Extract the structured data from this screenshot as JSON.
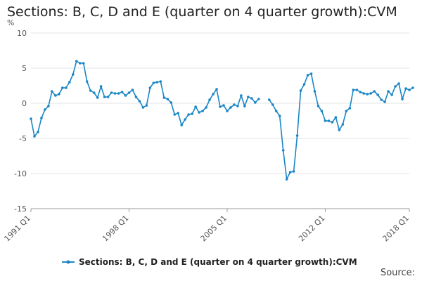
{
  "chart_data": {
    "type": "line",
    "title": "Sections: B, C, D and E (quarter on 4 quarter growth):CVM",
    "ylabel": "%",
    "xlabel": "",
    "ylim": [
      -15,
      10
    ],
    "yticks": [
      10,
      5,
      0,
      -5,
      -10,
      -15
    ],
    "xtick_labels": [
      "1991 Q1",
      "1998 Q1",
      "2005 Q1",
      "2012 Q1",
      "2018 Q1"
    ],
    "grid": true,
    "legend_position": "bottom",
    "color": "#1a86c6",
    "series": [
      {
        "name": "Sections: B, C, D and E (quarter on 4 quarter growth):CVM",
        "segments": [
          {
            "start_quarter": "1991 Q1",
            "values": [
              -2.2,
              -4.7,
              -4.1,
              -2.1,
              -0.9,
              -0.4,
              1.7,
              1.1,
              1.3,
              2.2,
              2.2,
              3.0,
              4.1,
              6.0,
              5.7,
              5.7,
              3.1,
              1.8,
              1.5,
              0.8,
              2.4,
              0.9,
              0.9,
              1.5,
              1.4,
              1.4,
              1.6,
              1.1,
              1.5,
              1.9,
              0.9,
              0.3,
              -0.6,
              -0.3,
              2.2,
              2.9,
              3.0,
              3.1,
              0.8,
              0.6,
              0.1,
              -1.6,
              -1.4,
              -3.1,
              -2.3,
              -1.6,
              -1.5,
              -0.5,
              -1.3,
              -1.1,
              -0.6,
              0.5,
              1.3,
              2.0,
              -0.5,
              -0.3,
              -1.1,
              -0.6,
              -0.2,
              -0.4,
              1.1,
              -0.4,
              0.9,
              0.7,
              0.1,
              0.6
            ]
          },
          {
            "start_quarter": "2008 Q1",
            "values": [
              0.5,
              -0.2,
              -1.1,
              -1.8,
              -6.7,
              -10.8,
              -9.8,
              -9.7,
              -4.6,
              1.8,
              2.7,
              4.0,
              4.2,
              1.7,
              -0.4,
              -1.1,
              -2.5,
              -2.5,
              -2.7,
              -2.0,
              -3.8,
              -3.0,
              -1.1,
              -0.7,
              1.9,
              1.9,
              1.6,
              1.4,
              1.3,
              1.4,
              1.7,
              1.2,
              0.5,
              0.2,
              1.7,
              1.2,
              2.4,
              2.8,
              0.6,
              2.1,
              1.9,
              2.2
            ]
          }
        ]
      }
    ]
  },
  "source": "Source:"
}
